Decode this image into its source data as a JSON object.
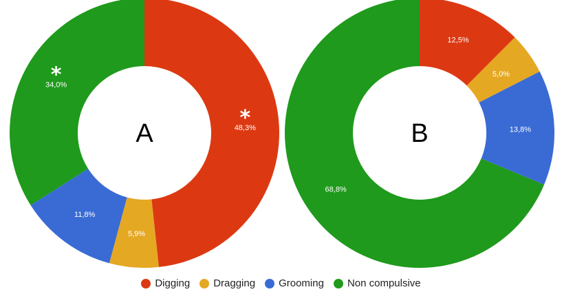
{
  "chart_data": [
    {
      "type": "pie",
      "center_label": "A",
      "categories": [
        "Digging",
        "Dragging",
        "Grooming",
        "Non compulsive"
      ],
      "values": [
        48.3,
        5.9,
        11.8,
        34.0
      ],
      "value_labels": [
        "48,3%",
        "5,9%",
        "11,8%",
        "34,0%"
      ],
      "significance_markers": [
        "*",
        "",
        "",
        "*"
      ]
    },
    {
      "type": "pie",
      "center_label": "B",
      "categories": [
        "Digging",
        "Dragging",
        "Grooming",
        "Non compulsive"
      ],
      "values": [
        12.5,
        5.0,
        13.8,
        68.8
      ],
      "value_labels": [
        "12,5%",
        "5,0%",
        "13,8%",
        "68,8%"
      ],
      "significance_markers": [
        "",
        "",
        "",
        ""
      ]
    }
  ],
  "legend": {
    "placement": "bottom",
    "items": [
      {
        "label": "Digging",
        "color": "#dc3912"
      },
      {
        "label": "Dragging",
        "color": "#e5a823"
      },
      {
        "label": "Grooming",
        "color": "#3a6bd4"
      },
      {
        "label": "Non compulsive",
        "color": "#1f9a1c"
      }
    ]
  }
}
